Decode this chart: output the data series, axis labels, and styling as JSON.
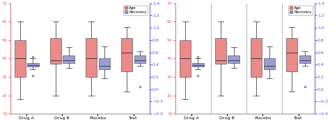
{
  "categories": [
    "Drug A",
    "Drug B",
    "Placebo",
    "Test"
  ],
  "left_ylim": [
    10,
    70
  ],
  "right_ylim": [
    -0.4,
    1.4
  ],
  "left_yticks": [
    10,
    20,
    30,
    40,
    50,
    60,
    70
  ],
  "right_yticks": [
    -0.4,
    -0.2,
    0.0,
    0.2,
    0.4,
    0.6,
    0.8,
    1.0,
    1.2,
    1.4
  ],
  "left_tick_color": "#e06060",
  "right_tick_color": "#5555dd",
  "age_color": "#e87070",
  "recovery_color": "#8888cc",
  "bg_color": "#ffffff",
  "legend_labels": [
    "Age",
    "Recovery"
  ],
  "age_data": [
    {
      "whislo": 18,
      "q1": 30,
      "med": 40,
      "q3": 50,
      "whishi": 60,
      "fliers": []
    },
    {
      "whislo": 20,
      "q1": 37,
      "med": 39,
      "q3": 51,
      "whishi": 60,
      "fliers": []
    },
    {
      "whislo": 20,
      "q1": 30,
      "med": 40,
      "q3": 51,
      "whishi": 60,
      "fliers": []
    },
    {
      "whislo": 22,
      "q1": 33,
      "med": 43,
      "q3": 51,
      "whishi": 57,
      "fliers": []
    }
  ],
  "recovery_data": [
    {
      "whislo": 0.32,
      "q1": 0.37,
      "med": 0.39,
      "q3": 0.42,
      "whishi": 0.5,
      "fliers": [
        0.22,
        0.53
      ]
    },
    {
      "whislo": 0.35,
      "q1": 0.42,
      "med": 0.47,
      "q3": 0.55,
      "whishi": 0.68,
      "fliers": []
    },
    {
      "whislo": 0.18,
      "q1": 0.32,
      "med": 0.38,
      "q3": 0.5,
      "whishi": 0.7,
      "fliers": []
    },
    {
      "whislo": 0.38,
      "q1": 0.42,
      "med": 0.47,
      "q3": 0.55,
      "whishi": 0.62,
      "fliers": [
        0.04
      ]
    }
  ],
  "figsize": [
    4.74,
    1.76
  ],
  "dpi": 100
}
